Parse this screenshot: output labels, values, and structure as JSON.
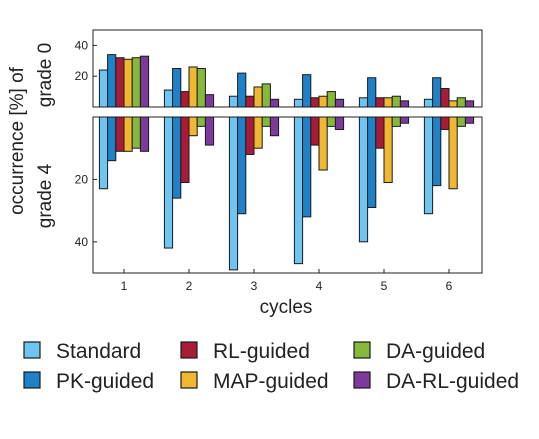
{
  "chart_data": {
    "type": "bar",
    "x": [
      1,
      2,
      3,
      4,
      5,
      6
    ],
    "xlabel": "cycles",
    "ylabel_lines": [
      "occurrence [%] of",
      "grade 0",
      "grade 4"
    ],
    "legend": {
      "placement": "bottom",
      "columns": 3
    },
    "panels": [
      {
        "id": "grade0",
        "ylim": [
          0,
          50
        ],
        "yticks": [
          20,
          40
        ],
        "series_values": [
          [
            24,
            11,
            7,
            5,
            6,
            5
          ],
          [
            34,
            25,
            22,
            21,
            19,
            19
          ],
          [
            32,
            10,
            7,
            6,
            6,
            12
          ],
          [
            31,
            26,
            13,
            7,
            6,
            4
          ],
          [
            32,
            25,
            15,
            10,
            7,
            6
          ],
          [
            33,
            8,
            5,
            5,
            4,
            4
          ]
        ]
      },
      {
        "id": "grade4",
        "ylim": [
          50,
          0
        ],
        "yticks": [
          20,
          40
        ],
        "series_values": [
          [
            23,
            42,
            49,
            47,
            40,
            31
          ],
          [
            14,
            26,
            31,
            32,
            29,
            22
          ],
          [
            11,
            21,
            12,
            9,
            10,
            4
          ],
          [
            11,
            6,
            10,
            17,
            21,
            23
          ],
          [
            10,
            3,
            3,
            3,
            3,
            3
          ],
          [
            11,
            9,
            6,
            4,
            2,
            2
          ]
        ]
      }
    ],
    "series": [
      {
        "name": "Standard",
        "color": "#6ec6f0"
      },
      {
        "name": "PK-guided",
        "color": "#1f82c8"
      },
      {
        "name": "RL-guided",
        "color": "#a81c3a"
      },
      {
        "name": "MAP-guided",
        "color": "#f0b830"
      },
      {
        "name": "DA-guided",
        "color": "#86b83c"
      },
      {
        "name": "DA-RL-guided",
        "color": "#7e3a9a"
      }
    ]
  }
}
